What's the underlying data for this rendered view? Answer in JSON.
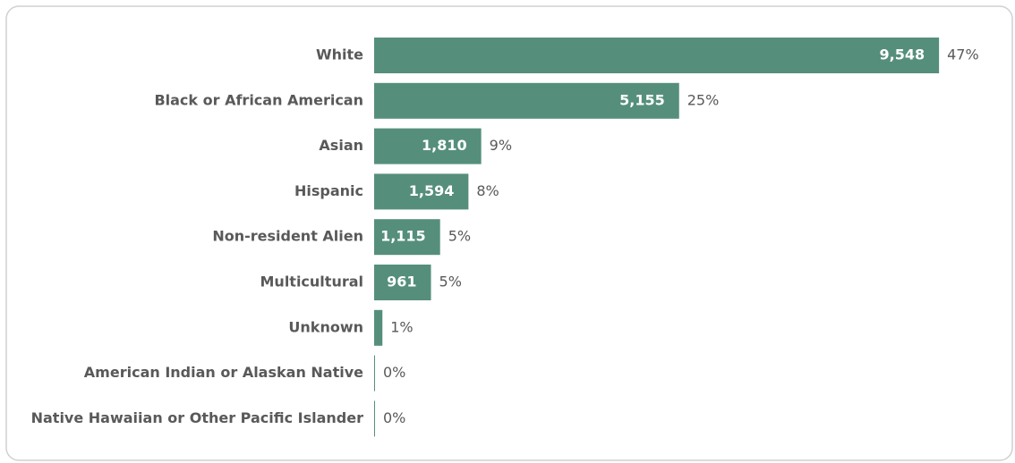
{
  "chart_data": {
    "type": "bar",
    "orientation": "horizontal",
    "categories": [
      "White",
      "Black or African American",
      "Asian",
      "Hispanic",
      "Non-resident Alien",
      "Multicultural",
      "Unknown",
      "American Indian or Alaskan Native",
      "Native Hawaiian or Other Pacific Islander"
    ],
    "values": [
      9548,
      5155,
      1810,
      1594,
      1115,
      961,
      140,
      15,
      10
    ],
    "value_labels": [
      "9,548",
      "5,155",
      "1,810",
      "1,594",
      "1,115",
      "961",
      null,
      null,
      null
    ],
    "share_labels": [
      "47%",
      "25%",
      "9%",
      "8%",
      "5%",
      "5%",
      "1%",
      "0%",
      "0%"
    ],
    "color": "#558f7b",
    "xlim": [
      0,
      10000
    ]
  }
}
